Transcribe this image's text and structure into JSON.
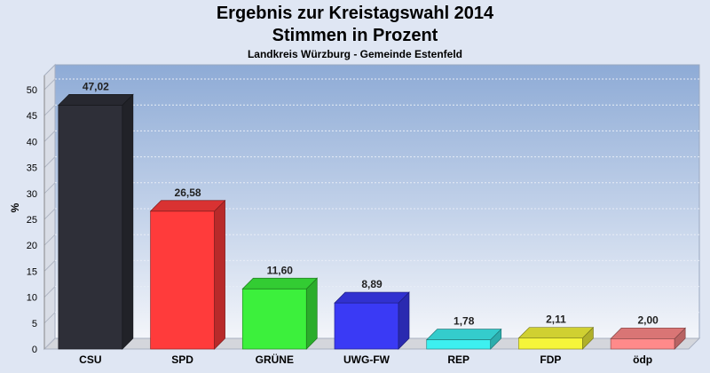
{
  "chart_data": {
    "type": "bar",
    "title": "Ergebnis zur Kreistagswahl 2014",
    "subtitle": "Stimmen in Prozent",
    "caption": "Landkreis Würzburg - Gemeinde Estenfeld",
    "ylabel": "%",
    "xlabel": "",
    "ylim": [
      0,
      50
    ],
    "yticks": [
      0,
      5,
      10,
      15,
      20,
      25,
      30,
      35,
      40,
      45,
      50
    ],
    "categories": [
      "CSU",
      "SPD",
      "GRÜNE",
      "UWG-FW",
      "REP",
      "FDP",
      "ödp"
    ],
    "values": [
      47.02,
      26.58,
      11.6,
      8.89,
      1.78,
      2.11,
      2.0
    ],
    "value_labels": [
      "47,02",
      "26,58",
      "11,60",
      "8,89",
      "1,78",
      "2,11",
      "2,00"
    ],
    "colors": [
      "#2e2f38",
      "#ff3b3b",
      "#3cf03c",
      "#3a3af5",
      "#3df0f0",
      "#f5f53a",
      "#ff8a8a"
    ],
    "grid": true,
    "legend": "none"
  }
}
